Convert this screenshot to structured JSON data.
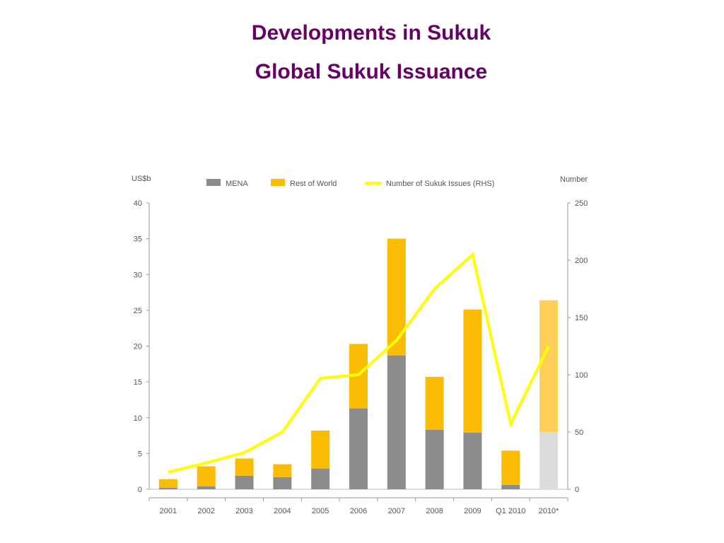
{
  "slide": {
    "title": "Developments in Sukuk",
    "subtitle": "Global Sukuk Issuance"
  },
  "chart_data": {
    "type": "bar",
    "categories": [
      "2001",
      "2002",
      "2003",
      "2004",
      "2005",
      "2006",
      "2007",
      "2008",
      "2009",
      "Q1 2010",
      "2010*"
    ],
    "series": [
      {
        "name": "MENA",
        "kind": "bar-stacked",
        "axis": "left",
        "color": "#8c8c8c",
        "values": [
          0.2,
          0.4,
          1.9,
          1.7,
          2.9,
          11.3,
          18.7,
          8.3,
          7.9,
          0.6,
          8.0
        ]
      },
      {
        "name": "Rest of World",
        "kind": "bar-stacked",
        "axis": "left",
        "color": "#fbbc04",
        "values": [
          1.2,
          2.8,
          2.4,
          1.8,
          5.3,
          9.0,
          16.3,
          7.4,
          17.2,
          4.8,
          18.4
        ]
      },
      {
        "name": "Number of Sukuk Issues (RHS)",
        "kind": "line",
        "axis": "right",
        "color": "#ffff00",
        "values": [
          15,
          23,
          32,
          50,
          97,
          100,
          130,
          175,
          205,
          57,
          125
        ]
      }
    ],
    "projected_category": "2010*",
    "projected_colors": {
      "MENA": "#dcdcdc",
      "Rest of World": "#ffcf5a"
    },
    "ylabel": "US$b",
    "y2label": "Number",
    "ylim": [
      0,
      40
    ],
    "y2lim": [
      0,
      250
    ],
    "yticks": [
      0,
      5,
      10,
      15,
      20,
      25,
      30,
      35,
      40
    ],
    "y2ticks": [
      0,
      50,
      100,
      150,
      200,
      250
    ],
    "legend_position": "top",
    "grid": false
  }
}
